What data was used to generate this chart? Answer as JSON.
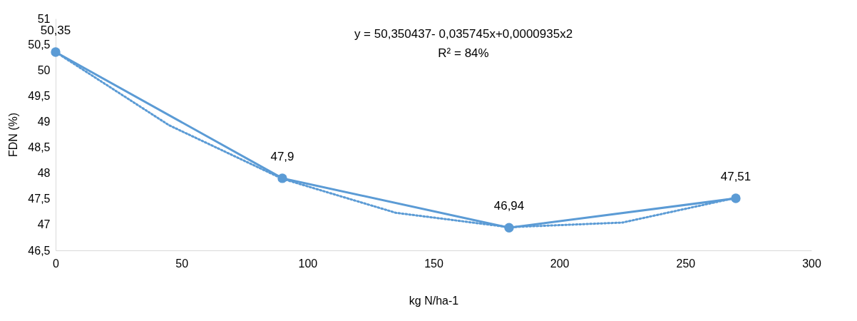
{
  "chart_data": {
    "type": "line",
    "xlabel": "kg N/ha-1",
    "ylabel": "FDN (%)",
    "x": [
      0,
      90,
      180,
      270
    ],
    "series": [
      {
        "color": "#5b9bd5",
        "values": [
          50.35,
          47.9,
          46.94,
          47.51
        ],
        "value_labels": [
          "50,35",
          "47,9",
          "46,94",
          "47,51"
        ],
        "marker": "circle",
        "line_style": "solid"
      },
      {
        "type": "line",
        "color": "#5b9bd5",
        "x": [
          0,
          45,
          90,
          135,
          180,
          225,
          270
        ],
        "values": [
          50.35,
          48.93,
          47.89,
          47.23,
          46.95,
          47.04,
          47.52
        ],
        "marker": "none",
        "line_style": "dotted"
      }
    ],
    "xlim": [
      0,
      300
    ],
    "xticks": [
      0,
      50,
      100,
      150,
      200,
      250,
      300
    ],
    "ylim": [
      46.5,
      51
    ],
    "yticks": [
      {
        "value": 46.5,
        "label": "46,5"
      },
      47,
      {
        "value": 47.5,
        "label": "47,5"
      },
      48,
      {
        "value": 48.5,
        "label": "48,5"
      },
      49,
      {
        "value": 49.5,
        "label": "49,5"
      },
      50,
      {
        "value": 50.5,
        "label": "50,5"
      },
      51
    ],
    "annotations": [
      "y = 50,350437- 0,035745x+0,0000935x2",
      "R² = 84%"
    ],
    "grid": false
  }
}
